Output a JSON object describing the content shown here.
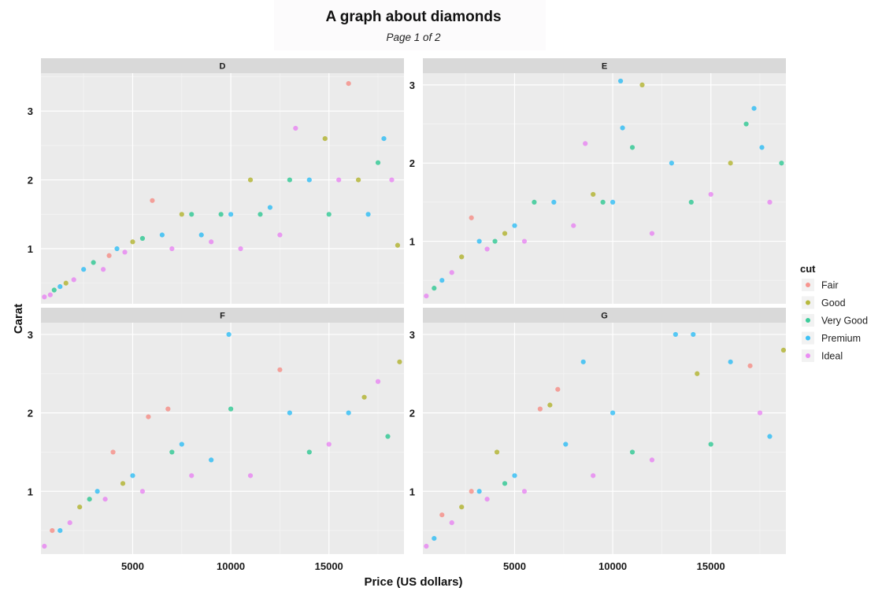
{
  "chart_data": {
    "type": "scatter",
    "title": "A graph about diamonds",
    "subtitle": "Page 1 of 2",
    "xlabel": "Price (US dollars)",
    "ylabel": "Carat",
    "xlim": [
      326,
      18823
    ],
    "x_ticks": [
      5000,
      10000,
      15000
    ],
    "y_ticks": [
      1,
      2,
      3
    ],
    "grid": true,
    "legend": {
      "title": "cut",
      "placement": "right",
      "entries": [
        {
          "name": "Fair",
          "color": "#F8766D"
        },
        {
          "name": "Good",
          "color": "#A3A500"
        },
        {
          "name": "Very Good",
          "color": "#00BF7D"
        },
        {
          "name": "Premium",
          "color": "#00B0F6"
        },
        {
          "name": "Ideal",
          "color": "#E76BF3"
        }
      ]
    },
    "panels": [
      {
        "facet": "D",
        "ylim": [
          0.2,
          3.55
        ],
        "points": [
          {
            "cut": "Ideal",
            "x": 500,
            "y": 0.3
          },
          {
            "cut": "Ideal",
            "x": 800,
            "y": 0.33
          },
          {
            "cut": "Very Good",
            "x": 1000,
            "y": 0.4
          },
          {
            "cut": "Premium",
            "x": 1300,
            "y": 0.45
          },
          {
            "cut": "Good",
            "x": 1600,
            "y": 0.5
          },
          {
            "cut": "Ideal",
            "x": 2000,
            "y": 0.55
          },
          {
            "cut": "Premium",
            "x": 2500,
            "y": 0.7
          },
          {
            "cut": "Very Good",
            "x": 3000,
            "y": 0.8
          },
          {
            "cut": "Ideal",
            "x": 3500,
            "y": 0.7
          },
          {
            "cut": "Fair",
            "x": 3800,
            "y": 0.9
          },
          {
            "cut": "Premium",
            "x": 4200,
            "y": 1.0
          },
          {
            "cut": "Ideal",
            "x": 4600,
            "y": 0.95
          },
          {
            "cut": "Good",
            "x": 5000,
            "y": 1.1
          },
          {
            "cut": "Very Good",
            "x": 5500,
            "y": 1.15
          },
          {
            "cut": "Fair",
            "x": 6000,
            "y": 1.7
          },
          {
            "cut": "Premium",
            "x": 6500,
            "y": 1.2
          },
          {
            "cut": "Ideal",
            "x": 7000,
            "y": 1.0
          },
          {
            "cut": "Good",
            "x": 7500,
            "y": 1.5
          },
          {
            "cut": "Very Good",
            "x": 8000,
            "y": 1.5
          },
          {
            "cut": "Premium",
            "x": 8500,
            "y": 1.2
          },
          {
            "cut": "Ideal",
            "x": 9000,
            "y": 1.1
          },
          {
            "cut": "Very Good",
            "x": 9500,
            "y": 1.5
          },
          {
            "cut": "Premium",
            "x": 10000,
            "y": 1.5
          },
          {
            "cut": "Ideal",
            "x": 10500,
            "y": 1.0
          },
          {
            "cut": "Good",
            "x": 11000,
            "y": 2.0
          },
          {
            "cut": "Very Good",
            "x": 11500,
            "y": 1.5
          },
          {
            "cut": "Premium",
            "x": 12000,
            "y": 1.6
          },
          {
            "cut": "Ideal",
            "x": 12500,
            "y": 1.2
          },
          {
            "cut": "Very Good",
            "x": 13000,
            "y": 2.0
          },
          {
            "cut": "Ideal",
            "x": 13300,
            "y": 2.75
          },
          {
            "cut": "Premium",
            "x": 14000,
            "y": 2.0
          },
          {
            "cut": "Good",
            "x": 14800,
            "y": 2.6
          },
          {
            "cut": "Very Good",
            "x": 15000,
            "y": 1.5
          },
          {
            "cut": "Ideal",
            "x": 15500,
            "y": 2.0
          },
          {
            "cut": "Fair",
            "x": 16000,
            "y": 3.4
          },
          {
            "cut": "Good",
            "x": 16500,
            "y": 2.0
          },
          {
            "cut": "Premium",
            "x": 17000,
            "y": 1.5
          },
          {
            "cut": "Very Good",
            "x": 17500,
            "y": 2.25
          },
          {
            "cut": "Premium",
            "x": 17800,
            "y": 2.6
          },
          {
            "cut": "Ideal",
            "x": 18200,
            "y": 2.0
          },
          {
            "cut": "Good",
            "x": 18500,
            "y": 1.05
          }
        ]
      },
      {
        "facet": "E",
        "ylim": [
          0.2,
          3.15
        ],
        "points": [
          {
            "cut": "Ideal",
            "x": 500,
            "y": 0.3
          },
          {
            "cut": "Very Good",
            "x": 900,
            "y": 0.4
          },
          {
            "cut": "Premium",
            "x": 1300,
            "y": 0.5
          },
          {
            "cut": "Ideal",
            "x": 1800,
            "y": 0.6
          },
          {
            "cut": "Good",
            "x": 2300,
            "y": 0.8
          },
          {
            "cut": "Fair",
            "x": 2800,
            "y": 1.3
          },
          {
            "cut": "Premium",
            "x": 3200,
            "y": 1.0
          },
          {
            "cut": "Ideal",
            "x": 3600,
            "y": 0.9
          },
          {
            "cut": "Very Good",
            "x": 4000,
            "y": 1.0
          },
          {
            "cut": "Good",
            "x": 4500,
            "y": 1.1
          },
          {
            "cut": "Premium",
            "x": 5000,
            "y": 1.2
          },
          {
            "cut": "Ideal",
            "x": 5500,
            "y": 1.0
          },
          {
            "cut": "Very Good",
            "x": 6000,
            "y": 1.5
          },
          {
            "cut": "Premium",
            "x": 7000,
            "y": 1.5
          },
          {
            "cut": "Ideal",
            "x": 8000,
            "y": 1.2
          },
          {
            "cut": "Ideal",
            "x": 8600,
            "y": 2.25
          },
          {
            "cut": "Good",
            "x": 9000,
            "y": 1.6
          },
          {
            "cut": "Very Good",
            "x": 9500,
            "y": 1.5
          },
          {
            "cut": "Premium",
            "x": 10000,
            "y": 1.5
          },
          {
            "cut": "Premium",
            "x": 10400,
            "y": 3.05
          },
          {
            "cut": "Premium",
            "x": 10500,
            "y": 2.45
          },
          {
            "cut": "Good",
            "x": 11500,
            "y": 3.0
          },
          {
            "cut": "Very Good",
            "x": 11000,
            "y": 2.2
          },
          {
            "cut": "Ideal",
            "x": 12000,
            "y": 1.1
          },
          {
            "cut": "Premium",
            "x": 13000,
            "y": 2.0
          },
          {
            "cut": "Very Good",
            "x": 14000,
            "y": 1.5
          },
          {
            "cut": "Ideal",
            "x": 15000,
            "y": 1.6
          },
          {
            "cut": "Good",
            "x": 16000,
            "y": 2.0
          },
          {
            "cut": "Very Good",
            "x": 16800,
            "y": 2.5
          },
          {
            "cut": "Premium",
            "x": 17200,
            "y": 2.7
          },
          {
            "cut": "Premium",
            "x": 17600,
            "y": 2.2
          },
          {
            "cut": "Ideal",
            "x": 18000,
            "y": 1.5
          },
          {
            "cut": "Very Good",
            "x": 18600,
            "y": 2.0
          }
        ]
      },
      {
        "facet": "F",
        "ylim": [
          0.2,
          3.15
        ],
        "points": [
          {
            "cut": "Ideal",
            "x": 500,
            "y": 0.3
          },
          {
            "cut": "Fair",
            "x": 900,
            "y": 0.5
          },
          {
            "cut": "Premium",
            "x": 1300,
            "y": 0.5
          },
          {
            "cut": "Ideal",
            "x": 1800,
            "y": 0.6
          },
          {
            "cut": "Good",
            "x": 2300,
            "y": 0.8
          },
          {
            "cut": "Very Good",
            "x": 2800,
            "y": 0.9
          },
          {
            "cut": "Premium",
            "x": 3200,
            "y": 1.0
          },
          {
            "cut": "Ideal",
            "x": 3600,
            "y": 0.9
          },
          {
            "cut": "Fair",
            "x": 4000,
            "y": 1.5
          },
          {
            "cut": "Good",
            "x": 4500,
            "y": 1.1
          },
          {
            "cut": "Premium",
            "x": 5000,
            "y": 1.2
          },
          {
            "cut": "Ideal",
            "x": 5500,
            "y": 1.0
          },
          {
            "cut": "Fair",
            "x": 5800,
            "y": 1.95
          },
          {
            "cut": "Fair",
            "x": 6800,
            "y": 2.05
          },
          {
            "cut": "Very Good",
            "x": 7000,
            "y": 1.5
          },
          {
            "cut": "Premium",
            "x": 7500,
            "y": 1.6
          },
          {
            "cut": "Ideal",
            "x": 8000,
            "y": 1.2
          },
          {
            "cut": "Premium",
            "x": 9000,
            "y": 1.4
          },
          {
            "cut": "Premium",
            "x": 9900,
            "y": 3.0
          },
          {
            "cut": "Very Good",
            "x": 10000,
            "y": 2.05
          },
          {
            "cut": "Ideal",
            "x": 11000,
            "y": 1.2
          },
          {
            "cut": "Fair",
            "x": 12500,
            "y": 2.55
          },
          {
            "cut": "Premium",
            "x": 13000,
            "y": 2.0
          },
          {
            "cut": "Very Good",
            "x": 14000,
            "y": 1.5
          },
          {
            "cut": "Ideal",
            "x": 15000,
            "y": 1.6
          },
          {
            "cut": "Premium",
            "x": 16000,
            "y": 2.0
          },
          {
            "cut": "Good",
            "x": 16800,
            "y": 2.2
          },
          {
            "cut": "Ideal",
            "x": 17500,
            "y": 2.4
          },
          {
            "cut": "Very Good",
            "x": 18000,
            "y": 1.7
          },
          {
            "cut": "Good",
            "x": 18600,
            "y": 2.65
          }
        ]
      },
      {
        "facet": "G",
        "ylim": [
          0.2,
          3.15
        ],
        "points": [
          {
            "cut": "Ideal",
            "x": 500,
            "y": 0.3
          },
          {
            "cut": "Premium",
            "x": 900,
            "y": 0.4
          },
          {
            "cut": "Fair",
            "x": 1300,
            "y": 0.7
          },
          {
            "cut": "Ideal",
            "x": 1800,
            "y": 0.6
          },
          {
            "cut": "Good",
            "x": 2300,
            "y": 0.8
          },
          {
            "cut": "Fair",
            "x": 2800,
            "y": 1.0
          },
          {
            "cut": "Premium",
            "x": 3200,
            "y": 1.0
          },
          {
            "cut": "Ideal",
            "x": 3600,
            "y": 0.9
          },
          {
            "cut": "Good",
            "x": 4100,
            "y": 1.5
          },
          {
            "cut": "Very Good",
            "x": 4500,
            "y": 1.1
          },
          {
            "cut": "Premium",
            "x": 5000,
            "y": 1.2
          },
          {
            "cut": "Ideal",
            "x": 5500,
            "y": 1.0
          },
          {
            "cut": "Fair",
            "x": 6300,
            "y": 2.05
          },
          {
            "cut": "Good",
            "x": 6800,
            "y": 2.1
          },
          {
            "cut": "Fair",
            "x": 7200,
            "y": 2.3
          },
          {
            "cut": "Premium",
            "x": 7600,
            "y": 1.6
          },
          {
            "cut": "Premium",
            "x": 8500,
            "y": 2.65
          },
          {
            "cut": "Ideal",
            "x": 9000,
            "y": 1.2
          },
          {
            "cut": "Premium",
            "x": 10000,
            "y": 2.0
          },
          {
            "cut": "Very Good",
            "x": 11000,
            "y": 1.5
          },
          {
            "cut": "Ideal",
            "x": 12000,
            "y": 1.4
          },
          {
            "cut": "Premium",
            "x": 13200,
            "y": 3.0
          },
          {
            "cut": "Premium",
            "x": 14100,
            "y": 3.0
          },
          {
            "cut": "Good",
            "x": 14300,
            "y": 2.5
          },
          {
            "cut": "Very Good",
            "x": 15000,
            "y": 1.6
          },
          {
            "cut": "Premium",
            "x": 16000,
            "y": 2.65
          },
          {
            "cut": "Fair",
            "x": 17000,
            "y": 2.6
          },
          {
            "cut": "Ideal",
            "x": 17500,
            "y": 2.0
          },
          {
            "cut": "Premium",
            "x": 18000,
            "y": 1.7
          },
          {
            "cut": "Good",
            "x": 18700,
            "y": 2.8
          }
        ]
      }
    ]
  }
}
